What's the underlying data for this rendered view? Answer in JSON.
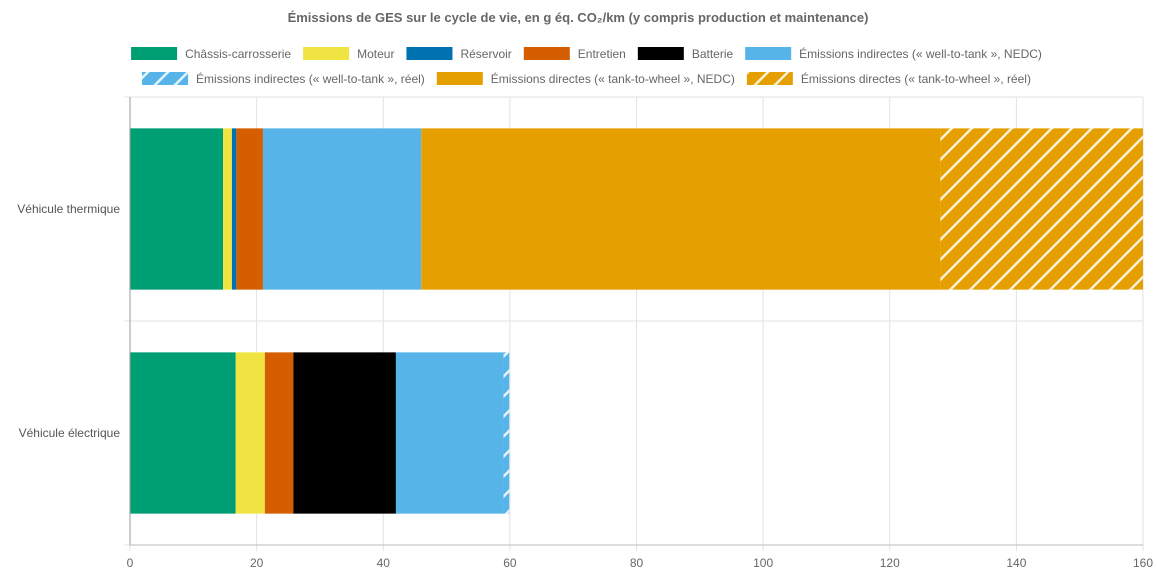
{
  "chart_data": {
    "type": "bar",
    "orientation": "horizontal",
    "stacked": true,
    "title": "Émissions de GES sur le cycle de vie, en g éq. CO₂/km (y compris production et maintenance)",
    "xlabel": "",
    "ylabel": "",
    "xlim": [
      0,
      160
    ],
    "xticks": [
      "0",
      "20",
      "40",
      "60",
      "80",
      "100",
      "120",
      "140",
      "160"
    ],
    "grid": true,
    "legend_position": "top",
    "categories": [
      "Véhicule thermique",
      "Véhicule électrique"
    ],
    "series": [
      {
        "name": "Châssis-carrosserie",
        "color": "#009e73",
        "hatched": false,
        "values": [
          14.7,
          16.7
        ]
      },
      {
        "name": "Moteur",
        "color": "#f0e442",
        "hatched": false,
        "values": [
          1.4,
          4.6
        ]
      },
      {
        "name": "Réservoir",
        "color": "#0072b2",
        "hatched": false,
        "values": [
          0.7,
          0
        ]
      },
      {
        "name": "Entretien",
        "color": "#d55e00",
        "hatched": false,
        "values": [
          4.2,
          4.5
        ]
      },
      {
        "name": "Batterie",
        "color": "#000000",
        "hatched": false,
        "values": [
          0,
          16.2
        ]
      },
      {
        "name": "Émissions indirectes (« well-to-tank », NEDC)",
        "color": "#56b4e9",
        "hatched": false,
        "values": [
          25.0,
          17.0
        ]
      },
      {
        "name": "Émissions indirectes (« well-to-tank », réel)",
        "color": "#56b4e9",
        "hatched": true,
        "values": [
          0,
          0.9
        ]
      },
      {
        "name": "Émissions directes (« tank-to-wheel », NEDC)",
        "color": "#e69f00",
        "hatched": false,
        "values": [
          82.0,
          0
        ]
      },
      {
        "name": "Émissions directes (« tank-to-wheel », réel)",
        "color": "#e69f00",
        "hatched": true,
        "values": [
          32.0,
          0
        ]
      }
    ]
  }
}
